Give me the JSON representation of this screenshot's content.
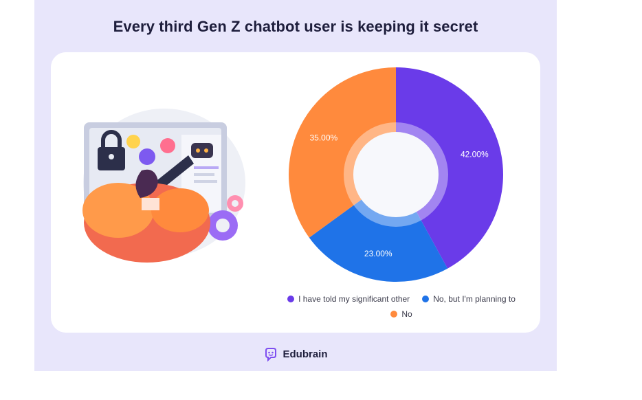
{
  "header": {
    "title": "Every third Gen Z chatbot user is keeping it secret"
  },
  "chart_data": {
    "type": "pie",
    "title": "Every third Gen Z chatbot user is keeping it secret",
    "categories": [
      "I have told my significant other",
      "No, but I'm planning to",
      "No"
    ],
    "values": [
      42.0,
      23.0,
      35.0
    ],
    "labels": [
      "42.00%",
      "23.00%",
      "35.00%"
    ],
    "colors": [
      "#6a3be9",
      "#1f73e8",
      "#ff8a3d"
    ],
    "legend_position": "bottom",
    "donut": true
  },
  "legend": {
    "items": [
      {
        "label": "I have told my significant other",
        "color": "#6a3be9"
      },
      {
        "label": "No, but I'm planning to",
        "color": "#1f73e8"
      },
      {
        "label": "No",
        "color": "#ff8a3d"
      }
    ]
  },
  "brand": {
    "name": "Edubrain",
    "icon": "edubrain-logo-icon"
  }
}
